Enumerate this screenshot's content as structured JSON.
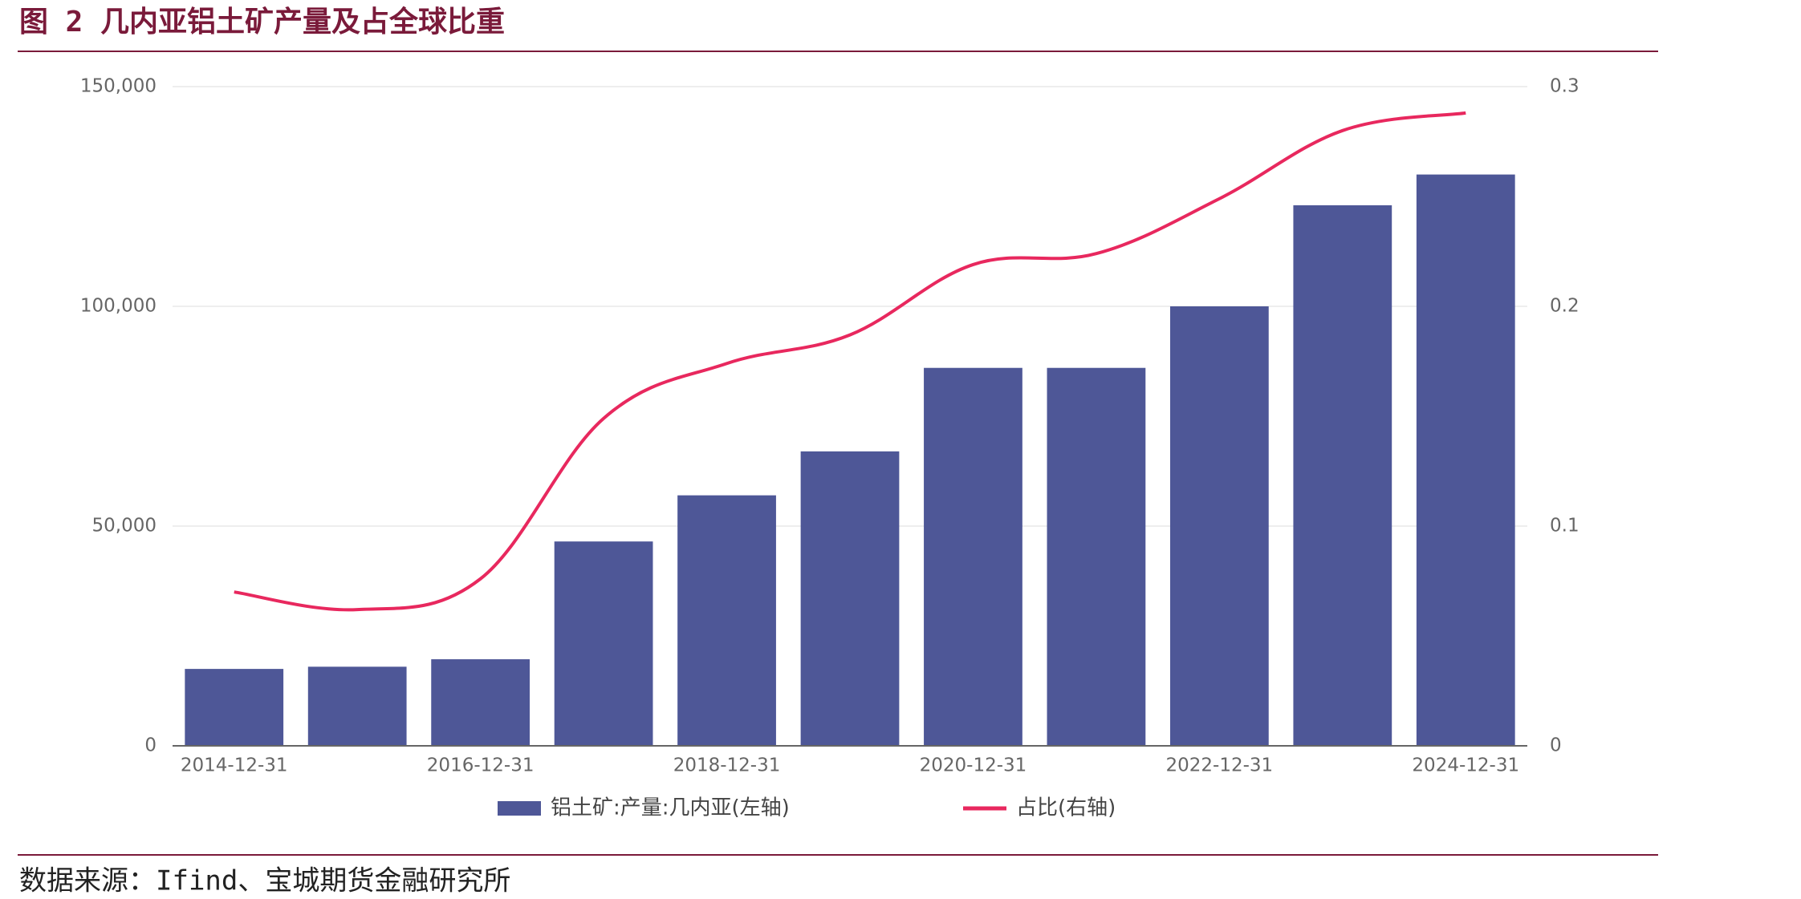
{
  "header": {
    "title": "图 2 几内亚铝土矿产量及占全球比重"
  },
  "chart_data": {
    "type": "bar-line",
    "categories": [
      "2014-12-31",
      null,
      "2016-12-31",
      null,
      "2018-12-31",
      null,
      "2020-12-31",
      null,
      "2022-12-31",
      null,
      "2024-12-31"
    ],
    "series": [
      {
        "name": "铝土矿:产量:几内亚(左轴)",
        "type": "bar",
        "color": "#4e5797",
        "values": [
          17500,
          18000,
          19700,
          46500,
          57000,
          67000,
          86000,
          86000,
          100000,
          123000,
          130000
        ]
      },
      {
        "name": "占比(右轴)",
        "type": "line",
        "axis": "y2",
        "color": "#e8285e",
        "values": [
          0.07,
          0.062,
          0.076,
          0.149,
          0.174,
          0.187,
          0.219,
          0.224,
          0.249,
          0.28,
          0.288
        ]
      }
    ],
    "ylim": [
      0,
      150000
    ],
    "yticks": [
      0,
      {
        "value": 50000,
        "label": "50,000"
      },
      {
        "value": 100000,
        "label": "100,000"
      },
      {
        "value": 150000,
        "label": "150,000"
      }
    ],
    "y2lim": [
      0,
      0.3
    ],
    "y2ticks": [
      0,
      0.1,
      0.2,
      0.3
    ],
    "grid": true
  },
  "footer": {
    "source": "数据来源：Ifind、宝城期货金融研究所"
  }
}
